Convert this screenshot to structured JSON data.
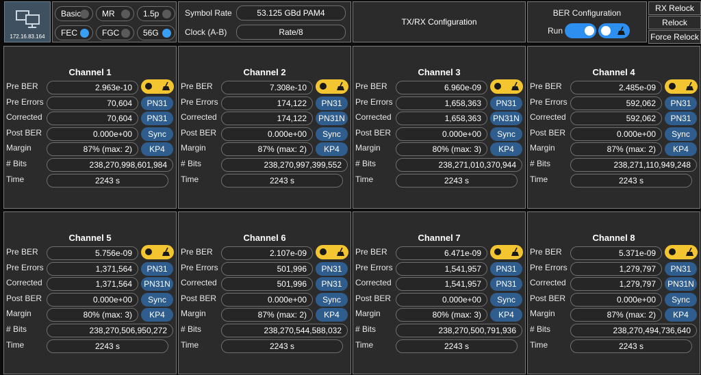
{
  "device": {
    "ip": "172.16.83.164",
    "icon": "monitor-network-icon"
  },
  "modes": [
    {
      "label": "Basic",
      "on": false
    },
    {
      "label": "MR",
      "on": false
    },
    {
      "label": "1.5p",
      "on": false
    },
    {
      "label": "FEC",
      "on": true
    },
    {
      "label": "FGC",
      "on": false
    },
    {
      "label": "56G",
      "on": true
    }
  ],
  "symbol": {
    "rate_label": "Symbol Rate",
    "rate_value": "53.125 GBd PAM4",
    "clock_label": "Clock (A-B)",
    "clock_value": "Rate/8"
  },
  "txrx": {
    "title": "TX/RX Configuration"
  },
  "ber_config": {
    "title": "BER Configuration",
    "run_label": "Run"
  },
  "commands": {
    "rx_relock": "RX Relock",
    "relock": "Relock",
    "force_relock": "Force Relock"
  },
  "labels": {
    "pre_ber": "Pre BER",
    "pre_errors": "Pre Errors",
    "corrected": "Corrected",
    "post_ber": "Post BER",
    "margin": "Margin",
    "bits": "# Bits",
    "time": "Time"
  },
  "colors": {
    "accent_blue": "#2d8ff0",
    "tag_blue": "#2f5e8e",
    "toggle_yellow": "#f2c531"
  },
  "channels": [
    {
      "title": "Channel 1",
      "pre_ber": "2.963e-10",
      "pre_errors": "70,604",
      "corrected": "70,604",
      "post_ber": "0.000e+00",
      "margin": "87% (max: 2)",
      "bits": "238,270,998,601,984",
      "time": "2243 s",
      "pattern1": "PN31",
      "pattern2": "PN31",
      "sync": "Sync",
      "fec": "KP4"
    },
    {
      "title": "Channel 2",
      "pre_ber": "7.308e-10",
      "pre_errors": "174,122",
      "corrected": "174,122",
      "post_ber": "0.000e+00",
      "margin": "87% (max: 2)",
      "bits": "238,270,997,399,552",
      "time": "2243 s",
      "pattern1": "PN31",
      "pattern2": "PN31N",
      "sync": "Sync",
      "fec": "KP4"
    },
    {
      "title": "Channel 3",
      "pre_ber": "6.960e-09",
      "pre_errors": "1,658,363",
      "corrected": "1,658,363",
      "post_ber": "0.000e+00",
      "margin": "80% (max: 3)",
      "bits": "238,271,010,370,944",
      "time": "2243 s",
      "pattern1": "PN31",
      "pattern2": "PN31N",
      "sync": "Sync",
      "fec": "KP4"
    },
    {
      "title": "Channel 4",
      "pre_ber": "2.485e-09",
      "pre_errors": "592,062",
      "corrected": "592,062",
      "post_ber": "0.000e+00",
      "margin": "87% (max: 2)",
      "bits": "238,271,110,949,248",
      "time": "2243 s",
      "pattern1": "PN31",
      "pattern2": "PN31",
      "sync": "Sync",
      "fec": "KP4"
    },
    {
      "title": "Channel 5",
      "pre_ber": "5.756e-09",
      "pre_errors": "1,371,564",
      "corrected": "1,371,564",
      "post_ber": "0.000e+00",
      "margin": "80% (max: 3)",
      "bits": "238,270,506,950,272",
      "time": "2243 s",
      "pattern1": "PN31",
      "pattern2": "PN31N",
      "sync": "Sync",
      "fec": "KP4"
    },
    {
      "title": "Channel 6",
      "pre_ber": "2.107e-09",
      "pre_errors": "501,996",
      "corrected": "501,996",
      "post_ber": "0.000e+00",
      "margin": "87% (max: 2)",
      "bits": "238,270,544,588,032",
      "time": "2243 s",
      "pattern1": "PN31",
      "pattern2": "PN31",
      "sync": "Sync",
      "fec": "KP4"
    },
    {
      "title": "Channel 7",
      "pre_ber": "6.471e-09",
      "pre_errors": "1,541,957",
      "corrected": "1,541,957",
      "post_ber": "0.000e+00",
      "margin": "80% (max: 3)",
      "bits": "238,270,500,791,936",
      "time": "2243 s",
      "pattern1": "PN31",
      "pattern2": "PN31",
      "sync": "Sync",
      "fec": "KP4"
    },
    {
      "title": "Channel 8",
      "pre_ber": "5.371e-09",
      "pre_errors": "1,279,797",
      "corrected": "1,279,797",
      "post_ber": "0.000e+00",
      "margin": "87% (max: 2)",
      "bits": "238,270,494,736,640",
      "time": "2243 s",
      "pattern1": "PN31",
      "pattern2": "PN31N",
      "sync": "Sync",
      "fec": "KP4"
    }
  ]
}
